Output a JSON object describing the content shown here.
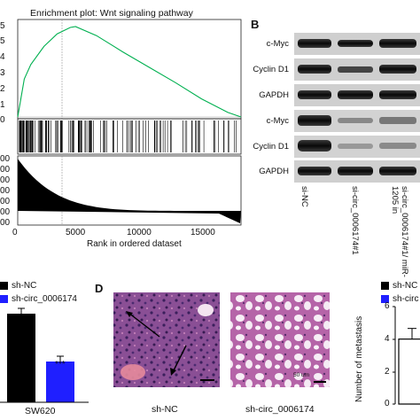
{
  "panelA": {
    "title": "Enrichment plot: Wnt signaling pathway",
    "y_ticks_partial": [
      "5",
      "5",
      "4",
      "3",
      "2",
      "1",
      "0"
    ],
    "bottom_y_ticks_partial": [
      "00",
      "00",
      "00",
      "00",
      "00",
      "00",
      "00"
    ],
    "x_ticks": [
      "0",
      "5000",
      "10000",
      "15000"
    ],
    "xlabel": "Rank in ordered dataset"
  },
  "panelB": {
    "letter": "B",
    "group1_labels": [
      "c-Myc",
      "Cyclin D1",
      "GAPDH"
    ],
    "group2_labels": [
      "c-Myc",
      "Cyclin D1",
      "GAPDH"
    ],
    "lane_labels": [
      "si-NC",
      "si-circ_0006174#1",
      "si-circ_0006174#1/ miR-1205 in"
    ]
  },
  "panelC": {
    "legend": [
      "sh-NC",
      "sh-circ_0006174"
    ],
    "significance": "***",
    "xlabel": "SW620",
    "colors": {
      "sh-NC": "#000000",
      "sh-circ": "#1f1fff"
    }
  },
  "panelD": {
    "letter": "D",
    "image_labels": [
      "sh-NC",
      "sh-circ_0006174"
    ],
    "scalebar": "50 um",
    "legend": [
      "sh-NC",
      "sh-circ"
    ],
    "ylabel": "Number of metastasis",
    "y_ticks": [
      "0",
      "2",
      "4",
      "6"
    ]
  },
  "chart_data": [
    {
      "type": "line",
      "title": "Enrichment plot: Wnt signaling pathway",
      "xlabel": "Rank in ordered dataset",
      "xlim": [
        0,
        17000
      ],
      "x": [
        0,
        500,
        1000,
        2000,
        3000,
        4000,
        4400,
        6000,
        8000,
        10000,
        12000,
        14000,
        16000,
        17000
      ],
      "y_relative": [
        0.0,
        0.42,
        0.58,
        0.78,
        0.92,
        0.99,
        1.0,
        0.9,
        0.72,
        0.55,
        0.38,
        0.2,
        0.05,
        0.0
      ]
    },
    {
      "type": "bar",
      "categories": [
        "SW620"
      ],
      "series": [
        {
          "name": "sh-NC",
          "values": [
            1.0
          ]
        },
        {
          "name": "sh-circ_0006174",
          "values": [
            0.46
          ]
        }
      ]
    },
    {
      "type": "bar",
      "categories": [
        "sh-NC"
      ],
      "ylabel": "Number of metastasis",
      "ylim": [
        0,
        6
      ],
      "series": [
        {
          "name": "sh-NC",
          "values": [
            4.0
          ]
        }
      ]
    }
  ]
}
